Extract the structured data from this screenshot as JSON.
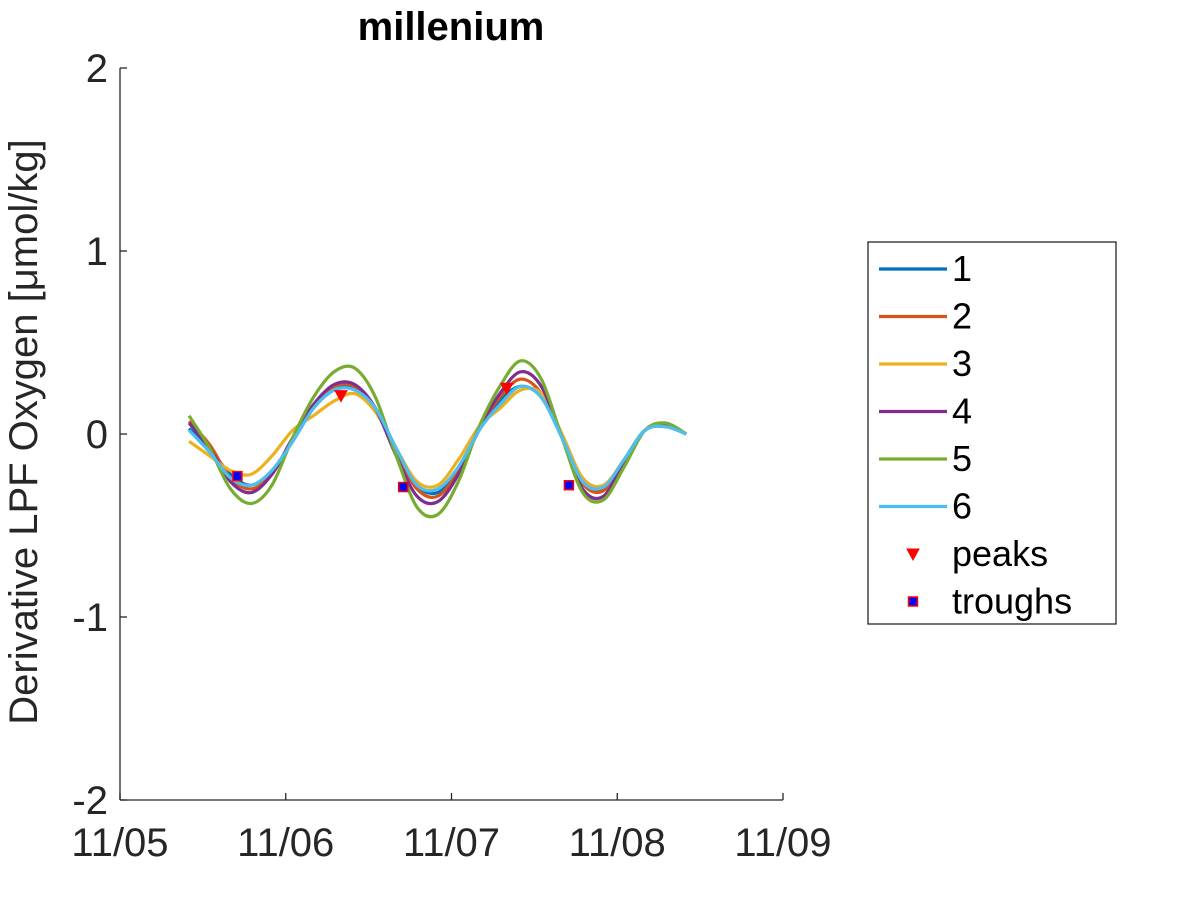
{
  "chart_data": {
    "type": "line",
    "title": "millenium",
    "ylabel": "Derivative LPF Oxygen [μmol/kg]",
    "xlabel": "",
    "xlim": [
      "11/05",
      "11/09"
    ],
    "ylim": [
      -2,
      2
    ],
    "x_ticks": [
      "11/05",
      "11/06",
      "11/07",
      "11/08",
      "11/09"
    ],
    "y_ticks": [
      "-2",
      "-1",
      "0",
      "1",
      "2"
    ],
    "grid": false,
    "legend_position": "right",
    "x": [
      "11/05 10:00",
      "11/05 13:00",
      "11/05 16:00",
      "11/05 19:00",
      "11/05 22:00",
      "11/06 01:00",
      "11/06 04:00",
      "11/06 07:00",
      "11/06 10:00",
      "11/06 13:00",
      "11/06 16:00",
      "11/06 19:00",
      "11/06 22:00",
      "11/07 01:00",
      "11/07 04:00",
      "11/07 07:00",
      "11/07 10:00",
      "11/07 13:00",
      "11/07 16:00",
      "11/07 19:00",
      "11/07 22:00",
      "11/08 01:00",
      "11/08 04:00",
      "11/08 07:00",
      "11/08 10:00"
    ],
    "series": [
      {
        "name": "1",
        "color": "#0072BD",
        "values": [
          0.03,
          -0.08,
          -0.22,
          -0.28,
          -0.2,
          -0.04,
          0.14,
          0.24,
          0.25,
          0.14,
          -0.08,
          -0.28,
          -0.32,
          -0.2,
          0.02,
          0.18,
          0.26,
          0.2,
          -0.02,
          -0.26,
          -0.3,
          -0.14,
          0.02,
          0.04,
          0.0
        ]
      },
      {
        "name": "2",
        "color": "#D95319",
        "values": [
          0.07,
          -0.06,
          -0.24,
          -0.3,
          -0.22,
          -0.03,
          0.16,
          0.26,
          0.26,
          0.14,
          -0.1,
          -0.3,
          -0.34,
          -0.2,
          0.03,
          0.2,
          0.3,
          0.22,
          -0.02,
          -0.27,
          -0.31,
          -0.15,
          0.02,
          0.05,
          0.0
        ]
      },
      {
        "name": "3",
        "color": "#EDB120",
        "values": [
          -0.04,
          -0.12,
          -0.2,
          -0.22,
          -0.12,
          0.02,
          0.1,
          0.18,
          0.22,
          0.12,
          -0.08,
          -0.26,
          -0.28,
          -0.14,
          0.04,
          0.14,
          0.24,
          0.22,
          0.0,
          -0.24,
          -0.28,
          -0.14,
          0.02,
          0.04,
          0.0
        ]
      },
      {
        "name": "4",
        "color": "#7E2F8E",
        "values": [
          0.06,
          -0.08,
          -0.26,
          -0.32,
          -0.22,
          -0.02,
          0.16,
          0.27,
          0.27,
          0.14,
          -0.12,
          -0.34,
          -0.37,
          -0.22,
          0.03,
          0.22,
          0.34,
          0.26,
          -0.02,
          -0.3,
          -0.34,
          -0.15,
          0.02,
          0.05,
          0.0
        ]
      },
      {
        "name": "5",
        "color": "#77AC30",
        "values": [
          0.1,
          -0.08,
          -0.3,
          -0.38,
          -0.28,
          -0.02,
          0.2,
          0.34,
          0.36,
          0.2,
          -0.12,
          -0.4,
          -0.44,
          -0.26,
          0.04,
          0.26,
          0.4,
          0.3,
          -0.02,
          -0.32,
          -0.36,
          -0.18,
          0.02,
          0.06,
          0.0
        ]
      },
      {
        "name": "6",
        "color": "#4DBEEE",
        "values": [
          0.02,
          -0.1,
          -0.24,
          -0.28,
          -0.2,
          -0.04,
          0.14,
          0.24,
          0.24,
          0.14,
          -0.08,
          -0.28,
          -0.3,
          -0.18,
          0.02,
          0.16,
          0.26,
          0.2,
          -0.02,
          -0.26,
          -0.29,
          -0.14,
          0.02,
          0.04,
          0.0
        ]
      }
    ],
    "peaks": {
      "name": "peaks",
      "color": "#FF0000",
      "points": [
        {
          "x": "11/06 08:00",
          "y": 0.21
        },
        {
          "x": "11/07 08:00",
          "y": 0.25
        }
      ]
    },
    "troughs": {
      "name": "troughs",
      "color": "#0000FF",
      "edge_color": "#FF0000",
      "points": [
        {
          "x": "11/05 17:00",
          "y": -0.23
        },
        {
          "x": "11/06 17:00",
          "y": -0.29
        },
        {
          "x": "11/07 17:00",
          "y": -0.28
        }
      ]
    }
  }
}
